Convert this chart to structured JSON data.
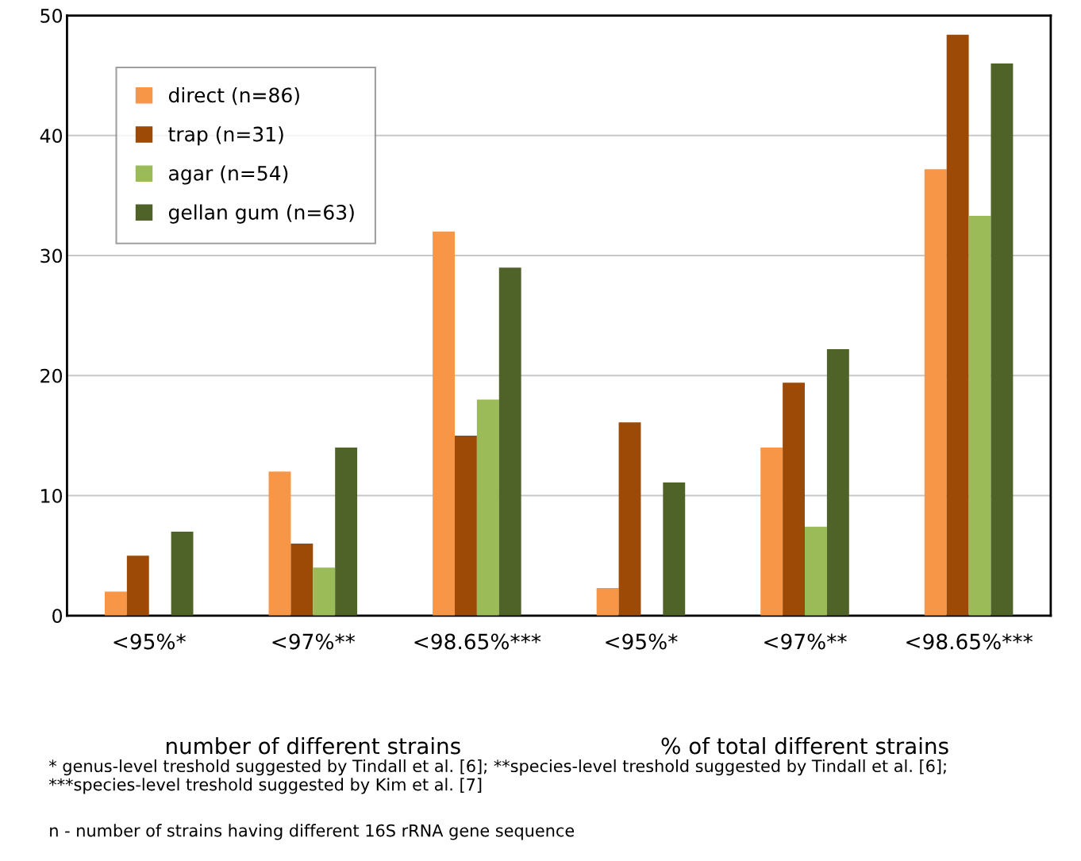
{
  "chart_data": {
    "type": "bar",
    "categories": [
      "<95%*",
      "<97%**",
      "<98.65%***",
      "<95%*",
      "<97%**",
      "<98.65%***"
    ],
    "series": [
      {
        "name": "direct (n=86)",
        "color": "#f79646",
        "values": [
          2,
          12,
          32,
          2.3,
          14,
          37.2
        ]
      },
      {
        "name": "trap (n=31)",
        "color": "#9c4a06",
        "values": [
          5,
          6,
          15,
          16.1,
          19.4,
          48.4
        ]
      },
      {
        "name": "agar (n=54)",
        "color": "#9bbb59",
        "values": [
          0,
          4,
          18,
          0,
          7.4,
          33.3
        ]
      },
      {
        "name": "gellan gum (n=63)",
        "color": "#4f6228",
        "values": [
          7,
          14,
          29,
          11.1,
          22.2,
          46
        ]
      }
    ],
    "ylim": [
      0,
      50
    ],
    "yticks": [
      0,
      10,
      20,
      30,
      40,
      50
    ],
    "grid": "y",
    "legend": "top left",
    "annotations": [
      "number of different strains",
      "% of total different strains",
      "* genus-level treshold suggested by Tindall et al. [6]; **species-level treshold suggested by Tindall et al. [6]; ***species-level treshold suggested by Kim et al. [7]",
      "n - number of strains having different 16S rRNA gene sequence"
    ]
  }
}
